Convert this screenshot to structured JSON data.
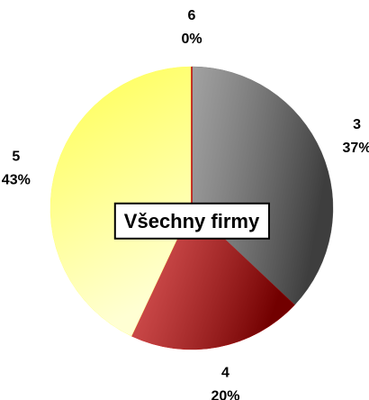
{
  "chart_data": {
    "type": "pie",
    "title": "Všechny firmy",
    "categories": [
      "3",
      "4",
      "5",
      "6"
    ],
    "values": [
      37,
      20,
      43,
      0
    ],
    "value_labels": [
      "37%",
      "20%",
      "43%",
      "0%"
    ],
    "colors": [
      "#707070",
      "#d00000",
      "#ffff50",
      "#c00000"
    ]
  }
}
